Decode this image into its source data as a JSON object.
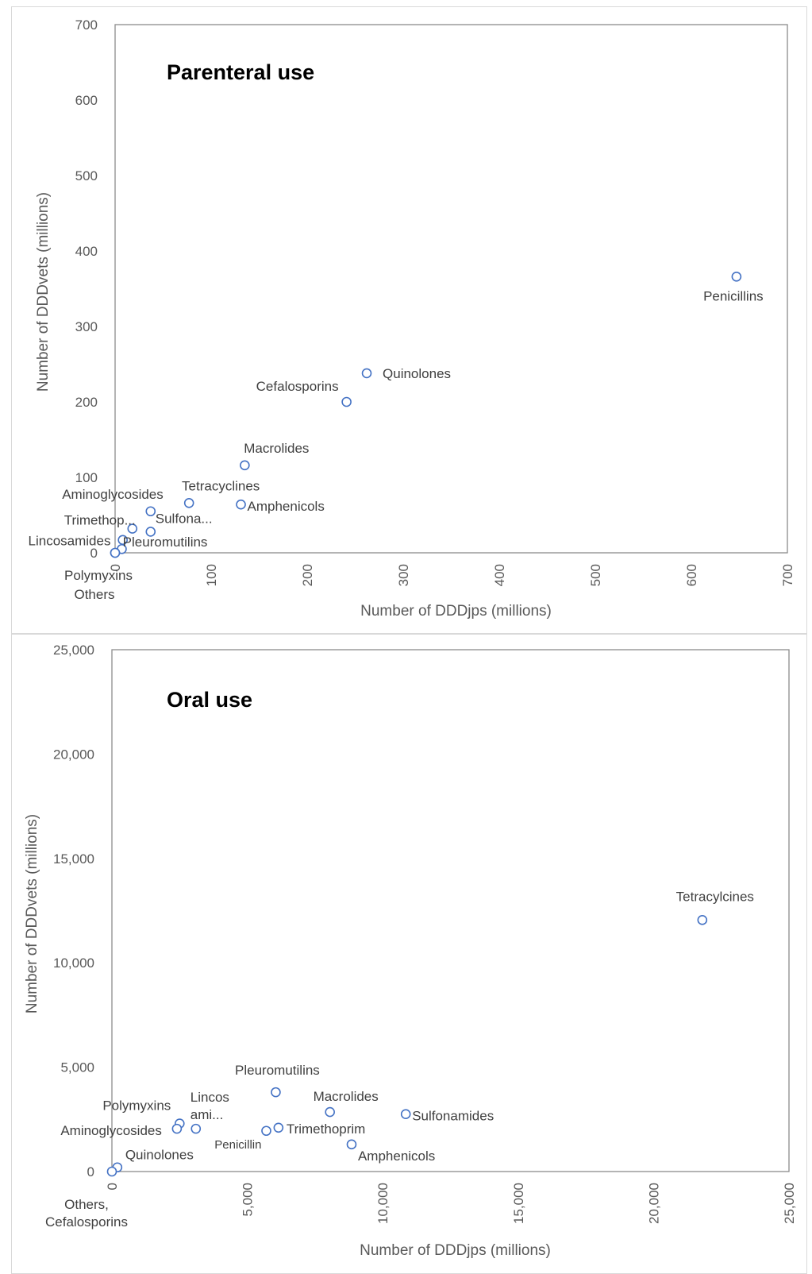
{
  "chart_data": [
    {
      "type": "scatter",
      "title": "Parenteral use",
      "xlabel": "Number of DDDjps (millions)",
      "ylabel": "Number of DDDvets (millions)",
      "xlim": [
        0,
        700
      ],
      "ylim": [
        0,
        700
      ],
      "x_ticks": [
        "0",
        "100",
        "200",
        "300",
        "400",
        "500",
        "600",
        "700"
      ],
      "y_ticks": [
        "0",
        "100",
        "200",
        "300",
        "400",
        "500",
        "600",
        "700"
      ],
      "grid": false,
      "legend": "none",
      "marker_color": "#4472c4",
      "points": [
        {
          "label": "Penicillins",
          "x": 647,
          "y": 366
        },
        {
          "label": "Quinolones",
          "x": 262,
          "y": 238
        },
        {
          "label": "Cefalosporins",
          "x": 241,
          "y": 200
        },
        {
          "label": "Macrolides",
          "x": 135,
          "y": 116
        },
        {
          "label": "Tetracyclines",
          "x": 77,
          "y": 66
        },
        {
          "label": "Amphenicols",
          "x": 131,
          "y": 64
        },
        {
          "label": "Aminoglycosides",
          "x": 37,
          "y": 55
        },
        {
          "label": "Sulfona...",
          "x": 37,
          "y": 28
        },
        {
          "label": "Trimethop...",
          "x": 18,
          "y": 32
        },
        {
          "label": "Lincosamides",
          "x": 7,
          "y": 5
        },
        {
          "label": "Pleuromutilins",
          "x": 8,
          "y": 17
        },
        {
          "label": "Polymyxins",
          "x": 0,
          "y": 0
        },
        {
          "label": "Others",
          "x": 0,
          "y": 0
        }
      ]
    },
    {
      "type": "scatter",
      "title": "Oral use",
      "xlabel": "Number of DDDjps (millions)",
      "ylabel": "Number of DDDvets (millions)",
      "xlim": [
        0,
        25000
      ],
      "ylim": [
        0,
        25000
      ],
      "x_ticks": [
        "0",
        "5,000",
        "10,000",
        "15,000",
        "20,000",
        "25,000"
      ],
      "y_ticks": [
        "0",
        "5,000",
        "10,000",
        "15,000",
        "20,000",
        "25,000"
      ],
      "grid": false,
      "legend": "none",
      "marker_color": "#4472c4",
      "points": [
        {
          "label": "Tetracylcines",
          "x": 21800,
          "y": 12050
        },
        {
          "label": "Pleuromutilins",
          "x": 6050,
          "y": 3800
        },
        {
          "label": "Macrolides",
          "x": 8050,
          "y": 2850
        },
        {
          "label": "Sulfonamides",
          "x": 10850,
          "y": 2750
        },
        {
          "label": "Trimethoprim",
          "x": 6150,
          "y": 2100
        },
        {
          "label": "Penicillin",
          "x": 5700,
          "y": 1950
        },
        {
          "label": "Amphenicols",
          "x": 8850,
          "y": 1300
        },
        {
          "label": "Lincos ami...",
          "x": 3100,
          "y": 2050
        },
        {
          "label": "Polymyxins",
          "x": 2500,
          "y": 2300
        },
        {
          "label": "Aminoglycosides",
          "x": 2400,
          "y": 2050
        },
        {
          "label": "Quinolones",
          "x": 200,
          "y": 200
        },
        {
          "label": "Others, Cefalosporins",
          "x": 0,
          "y": 0
        }
      ]
    }
  ]
}
